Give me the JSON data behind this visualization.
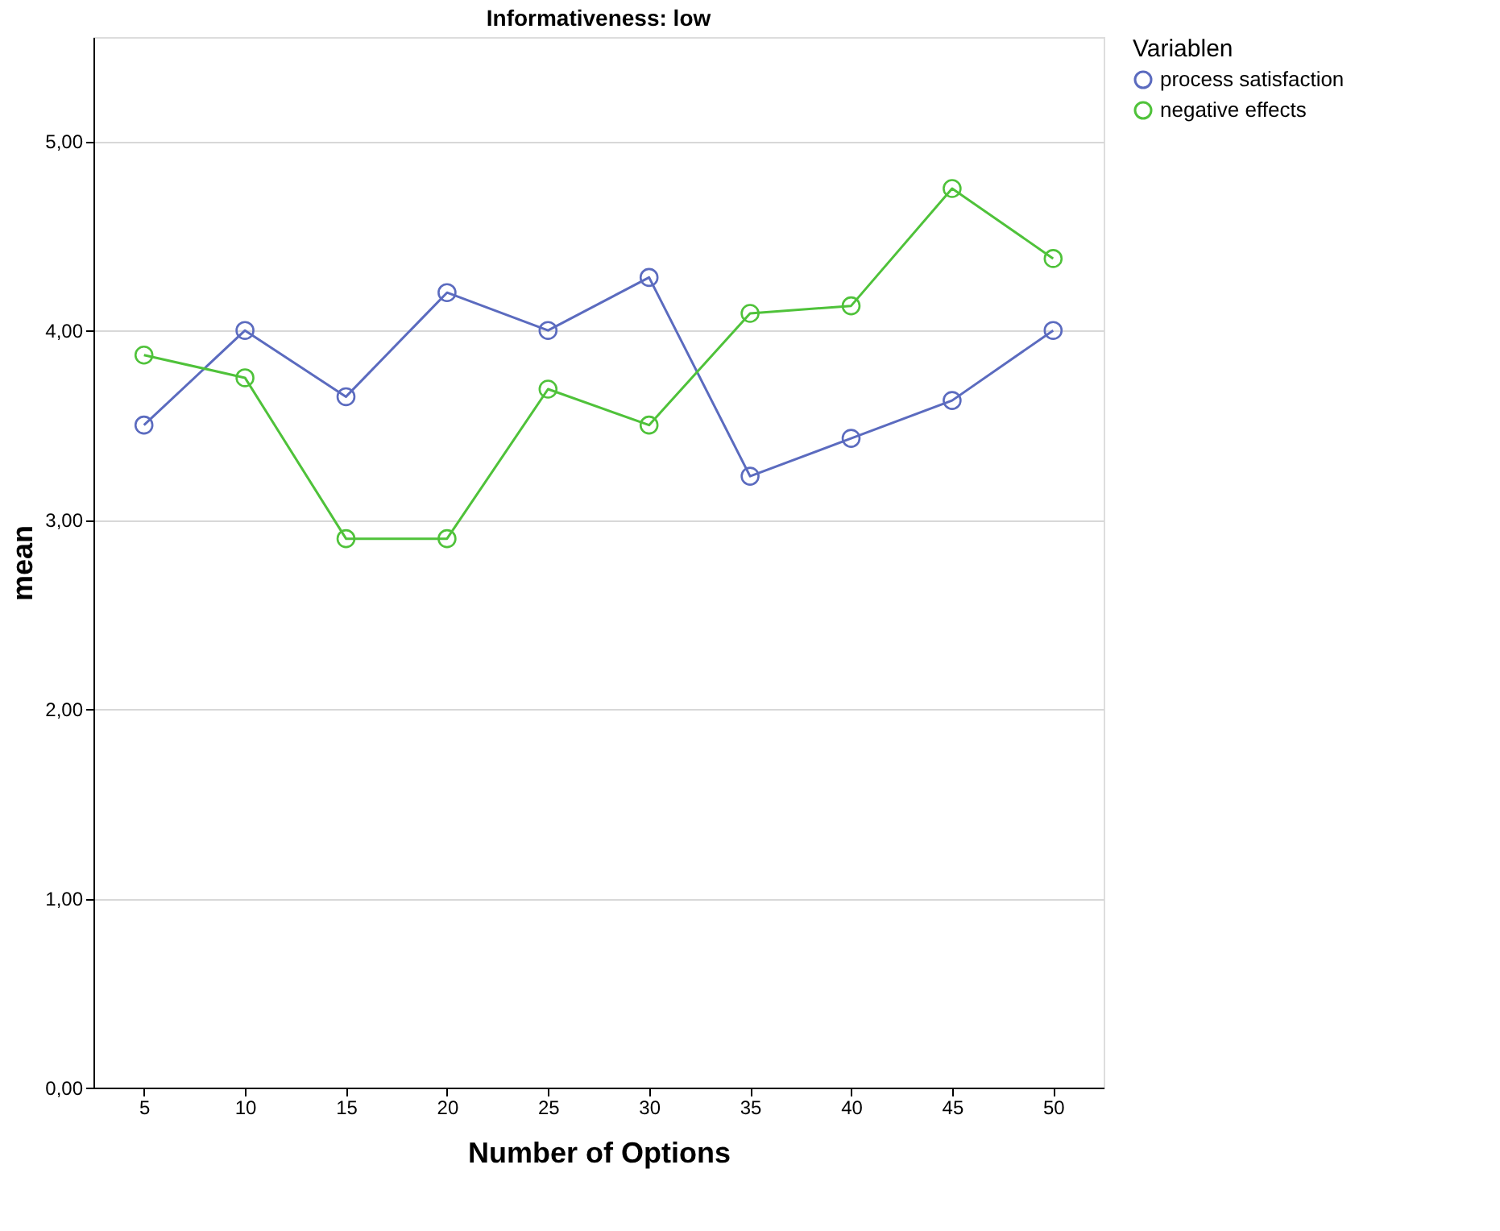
{
  "chart_data": {
    "type": "line",
    "title": "Informativeness: low",
    "xlabel": "Number of Options",
    "ylabel": "mean",
    "legend_title": "Variablen",
    "categories": [
      "5",
      "10",
      "15",
      "20",
      "25",
      "30",
      "35",
      "40",
      "45",
      "50"
    ],
    "series": [
      {
        "name": "process satisfaction",
        "color": "#5b6bbf",
        "values": [
          3.5,
          4.0,
          3.65,
          4.2,
          4.0,
          4.28,
          3.23,
          3.43,
          3.63,
          4.0
        ]
      },
      {
        "name": "negative effects",
        "color": "#4fc23a",
        "values": [
          3.87,
          3.75,
          2.9,
          2.9,
          3.69,
          3.5,
          4.09,
          4.13,
          4.75,
          4.38
        ]
      }
    ],
    "ylim": [
      0,
      5.55
    ],
    "yticks": [
      {
        "value": 0,
        "label": "0,00"
      },
      {
        "value": 1,
        "label": "1,00"
      },
      {
        "value": 2,
        "label": "2,00"
      },
      {
        "value": 3,
        "label": "3,00"
      },
      {
        "value": 4,
        "label": "4,00"
      },
      {
        "value": 5,
        "label": "5,00"
      }
    ],
    "grid": "y",
    "legend": "top right",
    "marker": "circle",
    "line_style": "solid"
  }
}
